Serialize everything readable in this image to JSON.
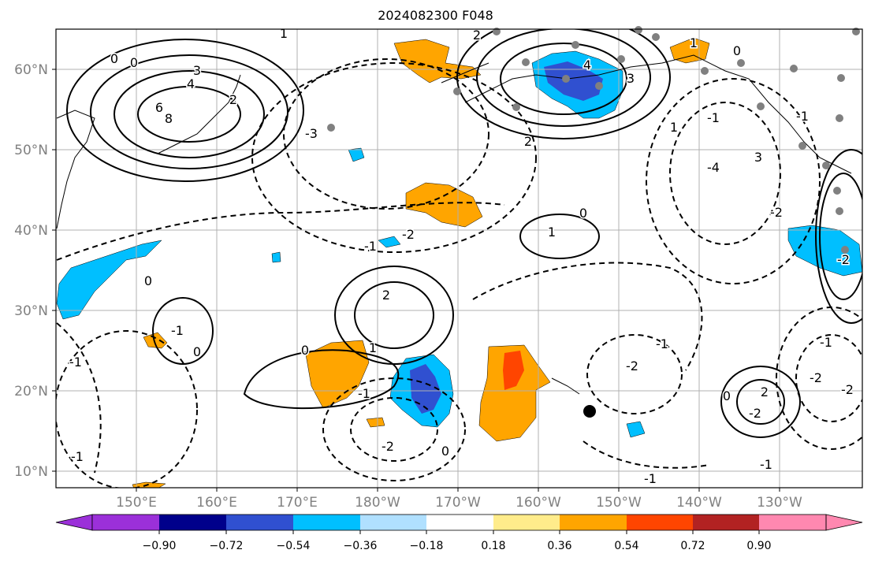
{
  "title": "2024082300 F048",
  "lat_labels": [
    "60°N",
    "50°N",
    "40°N",
    "30°N",
    "20°N",
    "10°N"
  ],
  "lon_labels": [
    "150°E",
    "160°E",
    "170°E",
    "180°W",
    "170°W",
    "160°W",
    "150°W",
    "140°W",
    "130°W"
  ],
  "colorbar": {
    "ticks": [
      "−0.90",
      "−0.72",
      "−0.54",
      "−0.36",
      "−0.18",
      "0.18",
      "0.36",
      "0.54",
      "0.72",
      "0.90"
    ],
    "colors": [
      "#9b30d9",
      "#00008b",
      "#3050d0",
      "#00bfff",
      "#b0e0ff",
      "#ffffff",
      "#ffec8b",
      "#ffa500",
      "#ff4500",
      "#b22222",
      "#ff88b0"
    ]
  },
  "contour_labels": [
    "3",
    "4",
    "6",
    "8",
    "2",
    "0",
    "0",
    "1",
    "2",
    "3",
    "1",
    "2",
    "4",
    "0",
    "-1",
    "-2",
    "-3",
    "-1",
    "0",
    "1",
    "-1",
    "0",
    "2",
    "1",
    "0",
    "-1",
    "-2",
    "-1",
    "0",
    "-2",
    "-1",
    "0",
    "-1",
    "-2",
    "2",
    "0",
    "-1",
    "-2",
    "-2",
    "-1",
    "3",
    "-4",
    "-2",
    "1",
    "-1",
    "-2",
    "-1"
  ],
  "fill_colors": {
    "orange": "#ffa500",
    "red_orange": "#ff4500",
    "light_blue": "#00bfff",
    "mid_blue": "#3050d0"
  }
}
